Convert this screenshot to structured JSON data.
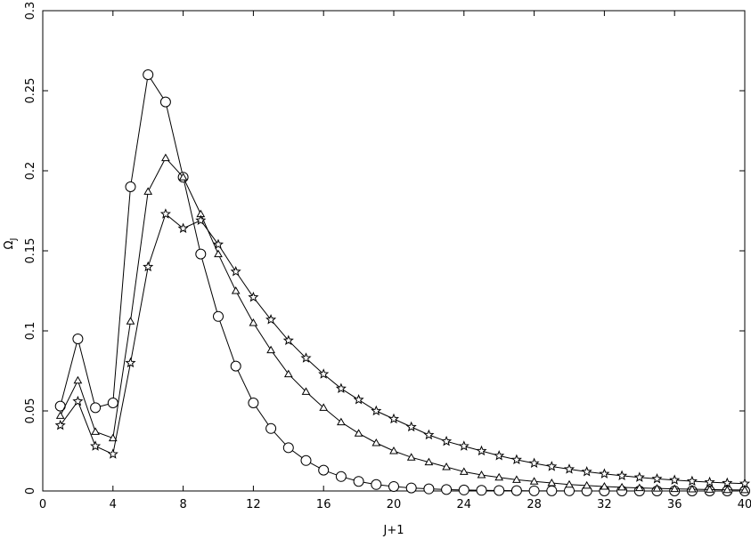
{
  "chart_data": {
    "type": "line",
    "xlabel": "J+1",
    "ylabel": "Ω",
    "ylabel_sub": "J",
    "xlim": [
      0,
      40
    ],
    "ylim": [
      0,
      0.3
    ],
    "x_ticks": [
      0,
      4,
      8,
      12,
      16,
      20,
      24,
      28,
      32,
      36,
      40
    ],
    "x_tick_labels": [
      "0",
      "4",
      "8",
      "12",
      "16",
      "20",
      "24",
      "28",
      "32",
      "36",
      "40"
    ],
    "y_ticks": [
      0,
      0.05,
      0.1,
      0.15,
      0.2,
      0.25,
      0.3
    ],
    "y_tick_labels": [
      "0",
      "0.05",
      "0.1",
      "0.15",
      "0.2",
      "0.25",
      "0.3"
    ],
    "grid": false,
    "legend": "none",
    "series": [
      {
        "marker": "circle",
        "x": [
          1,
          2,
          3,
          4,
          5,
          6,
          7,
          8,
          9,
          10,
          11,
          12,
          13,
          14,
          15,
          16,
          17,
          18,
          19,
          20,
          21,
          22,
          23,
          24,
          25,
          26,
          27,
          28,
          29,
          30,
          31,
          32,
          33,
          34,
          35,
          36,
          37,
          38,
          39,
          40
        ],
        "values": [
          0.053,
          0.095,
          0.052,
          0.055,
          0.19,
          0.26,
          0.243,
          0.196,
          0.148,
          0.109,
          0.078,
          0.055,
          0.039,
          0.027,
          0.019,
          0.013,
          0.009,
          0.006,
          0.004,
          0.0028,
          0.0019,
          0.0013,
          0.0009,
          0.0006,
          0.0004,
          0.0003,
          0.0002,
          0.0001,
          0.0001,
          0.0001,
          0.0,
          0.0,
          0.0,
          0.0,
          0.0,
          0.0,
          0.0,
          0.0,
          0.0,
          0.0
        ]
      },
      {
        "marker": "triangle",
        "x": [
          1,
          2,
          3,
          4,
          5,
          6,
          7,
          8,
          9,
          10,
          11,
          12,
          13,
          14,
          15,
          16,
          17,
          18,
          19,
          20,
          21,
          22,
          23,
          24,
          25,
          26,
          27,
          28,
          29,
          30,
          31,
          32,
          33,
          34,
          35,
          36,
          37,
          38,
          39,
          40
        ],
        "values": [
          0.047,
          0.069,
          0.037,
          0.033,
          0.106,
          0.187,
          0.208,
          0.196,
          0.173,
          0.148,
          0.125,
          0.105,
          0.088,
          0.073,
          0.062,
          0.052,
          0.043,
          0.036,
          0.03,
          0.025,
          0.021,
          0.018,
          0.015,
          0.012,
          0.01,
          0.0085,
          0.007,
          0.006,
          0.005,
          0.004,
          0.0034,
          0.0028,
          0.0023,
          0.0019,
          0.0016,
          0.0013,
          0.0011,
          0.0009,
          0.0007,
          0.0006
        ]
      },
      {
        "marker": "star",
        "x": [
          1,
          2,
          3,
          4,
          5,
          6,
          7,
          8,
          9,
          10,
          11,
          12,
          13,
          14,
          15,
          16,
          17,
          18,
          19,
          20,
          21,
          22,
          23,
          24,
          25,
          26,
          27,
          28,
          29,
          30,
          31,
          32,
          33,
          34,
          35,
          36,
          37,
          38,
          39,
          40
        ],
        "values": [
          0.041,
          0.056,
          0.028,
          0.023,
          0.08,
          0.14,
          0.173,
          0.164,
          0.169,
          0.154,
          0.137,
          0.121,
          0.107,
          0.094,
          0.083,
          0.073,
          0.064,
          0.057,
          0.05,
          0.045,
          0.04,
          0.035,
          0.031,
          0.028,
          0.025,
          0.022,
          0.0195,
          0.0173,
          0.0153,
          0.0136,
          0.012,
          0.0107,
          0.0095,
          0.0085,
          0.0076,
          0.0068,
          0.0061,
          0.0055,
          0.005,
          0.0046
        ]
      }
    ]
  }
}
